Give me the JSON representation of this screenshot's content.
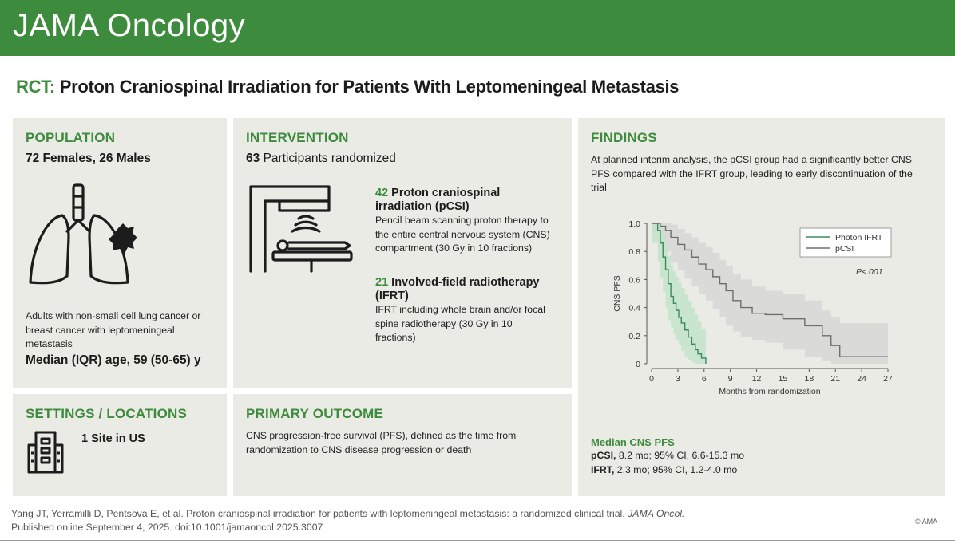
{
  "header": {
    "journal": "JAMA Oncology"
  },
  "title": {
    "prefix": "RCT:",
    "text": "Proton Craniospinal Irradiation for Patients With Leptomeningeal Metastasis"
  },
  "population": {
    "heading": "POPULATION",
    "sex": "72 Females, 26 Males",
    "description": "Adults with non-small cell lung cancer or breast cancer with leptomeningeal metastasis",
    "age": "Median (IQR) age, 59 (50-65) y"
  },
  "intervention": {
    "heading": "INTERVENTION",
    "randomized_count": "63",
    "randomized_text": "Participants randomized",
    "arm1": {
      "count": "42",
      "name": "Proton craniospinal irradiation (pCSI)",
      "description": "Pencil beam scanning proton therapy to the entire central nervous system (CNS) compartment (30 Gy in 10 fractions)"
    },
    "arm2": {
      "count": "21",
      "name": "Involved-field radiotherapy (IFRT)",
      "description": "IFRT including whole brain and/or focal spine radiotherapy (30 Gy in 10 fractions)"
    }
  },
  "settings": {
    "heading": "SETTINGS / LOCATIONS",
    "sites": "1 Site in US"
  },
  "outcome": {
    "heading": "PRIMARY OUTCOME",
    "text": "CNS progression-free survival (PFS), defined as the time from randomization to CNS disease progression or death"
  },
  "findings": {
    "heading": "FINDINGS",
    "text": "At planned interim analysis, the pCSI group had a significantly better CNS PFS compared with the IFRT group, leading to early discontinuation of the trial",
    "median_heading": "Median CNS PFS",
    "pcsi_label": "pCSI,",
    "pcsi_value": "8.2 mo; 95% CI, 6.6-15.3 mo",
    "ifrt_label": "IFRT,",
    "ifrt_value": "2.3 mo; 95% CI, 1.2-4.0 mo"
  },
  "chart_data": {
    "type": "line",
    "subtype": "kaplan-meier",
    "xlabel": "Months from randomization",
    "ylabel": "CNS PFS",
    "xlim": [
      0,
      27
    ],
    "ylim": [
      0,
      1.0
    ],
    "xticks": [
      "0",
      "3",
      "6",
      "9",
      "12",
      "15",
      "18",
      "21",
      "24",
      "27"
    ],
    "yticks": [
      "0",
      "0.2",
      "0.4",
      "0.6",
      "0.8",
      "1.0"
    ],
    "p_value": "P<.001",
    "legend_position": "top-right",
    "series": [
      {
        "name": "Photon IFRT",
        "color": "#3d8b5a",
        "band_color": "#bfe3c7",
        "x": [
          0,
          0.7,
          1.0,
          1.3,
          1.6,
          1.9,
          2.2,
          2.5,
          2.8,
          3.1,
          3.4,
          3.8,
          4.2,
          4.6,
          5.0,
          5.3,
          5.7,
          6.2
        ],
        "y": [
          1.0,
          0.95,
          0.86,
          0.76,
          0.67,
          0.57,
          0.48,
          0.43,
          0.38,
          0.33,
          0.29,
          0.24,
          0.19,
          0.14,
          0.1,
          0.07,
          0.04,
          0.0
        ],
        "lower": [
          1.0,
          0.86,
          0.73,
          0.61,
          0.51,
          0.4,
          0.31,
          0.26,
          0.21,
          0.17,
          0.13,
          0.09,
          0.05,
          0.03,
          0.01,
          0.0,
          0.0,
          0.0
        ],
        "upper": [
          1.0,
          1.0,
          0.97,
          0.92,
          0.85,
          0.77,
          0.7,
          0.66,
          0.62,
          0.58,
          0.54,
          0.5,
          0.45,
          0.4,
          0.35,
          0.3,
          0.25,
          0.0
        ]
      },
      {
        "name": "pCSI",
        "color": "#6e6e6e",
        "band_color": "#d4d4d4",
        "x": [
          0,
          1.0,
          1.6,
          2.2,
          3.0,
          3.8,
          4.6,
          5.4,
          6.2,
          7.0,
          7.8,
          8.5,
          9.3,
          10.2,
          11.5,
          13.0,
          15.0,
          17.5,
          19.5,
          20.5,
          21.5,
          24.0,
          27.0
        ],
        "y": [
          1.0,
          0.98,
          0.95,
          0.9,
          0.85,
          0.81,
          0.76,
          0.71,
          0.67,
          0.62,
          0.57,
          0.52,
          0.45,
          0.4,
          0.36,
          0.35,
          0.32,
          0.27,
          0.2,
          0.13,
          0.05,
          0.05,
          0.05
        ],
        "lower": [
          1.0,
          0.93,
          0.87,
          0.8,
          0.72,
          0.67,
          0.61,
          0.55,
          0.5,
          0.45,
          0.39,
          0.33,
          0.27,
          0.23,
          0.19,
          0.17,
          0.15,
          0.1,
          0.05,
          0.02,
          0.0,
          0.0,
          0.0
        ],
        "upper": [
          1.0,
          1.0,
          1.0,
          0.99,
          0.96,
          0.93,
          0.9,
          0.86,
          0.83,
          0.79,
          0.74,
          0.7,
          0.64,
          0.6,
          0.55,
          0.52,
          0.5,
          0.45,
          0.38,
          0.33,
          0.29,
          0.29,
          0.29
        ]
      }
    ]
  },
  "citation": {
    "line1a": "Yang JT, Yerramilli D, Pentsova E, et al. Proton craniospinal irradiation for patients with leptomeningeal metastasis: a randomized clinical trial.",
    "journal_italic": "JAMA Oncol.",
    "line2": "Published online September 4, 2025. doi:10.1001/jamaoncol.2025.3007",
    "copyright": "© AMA"
  },
  "icons": {
    "lungs": "lungs-icon",
    "radiotherapy": "radiotherapy-machine-icon",
    "building": "building-icon"
  }
}
